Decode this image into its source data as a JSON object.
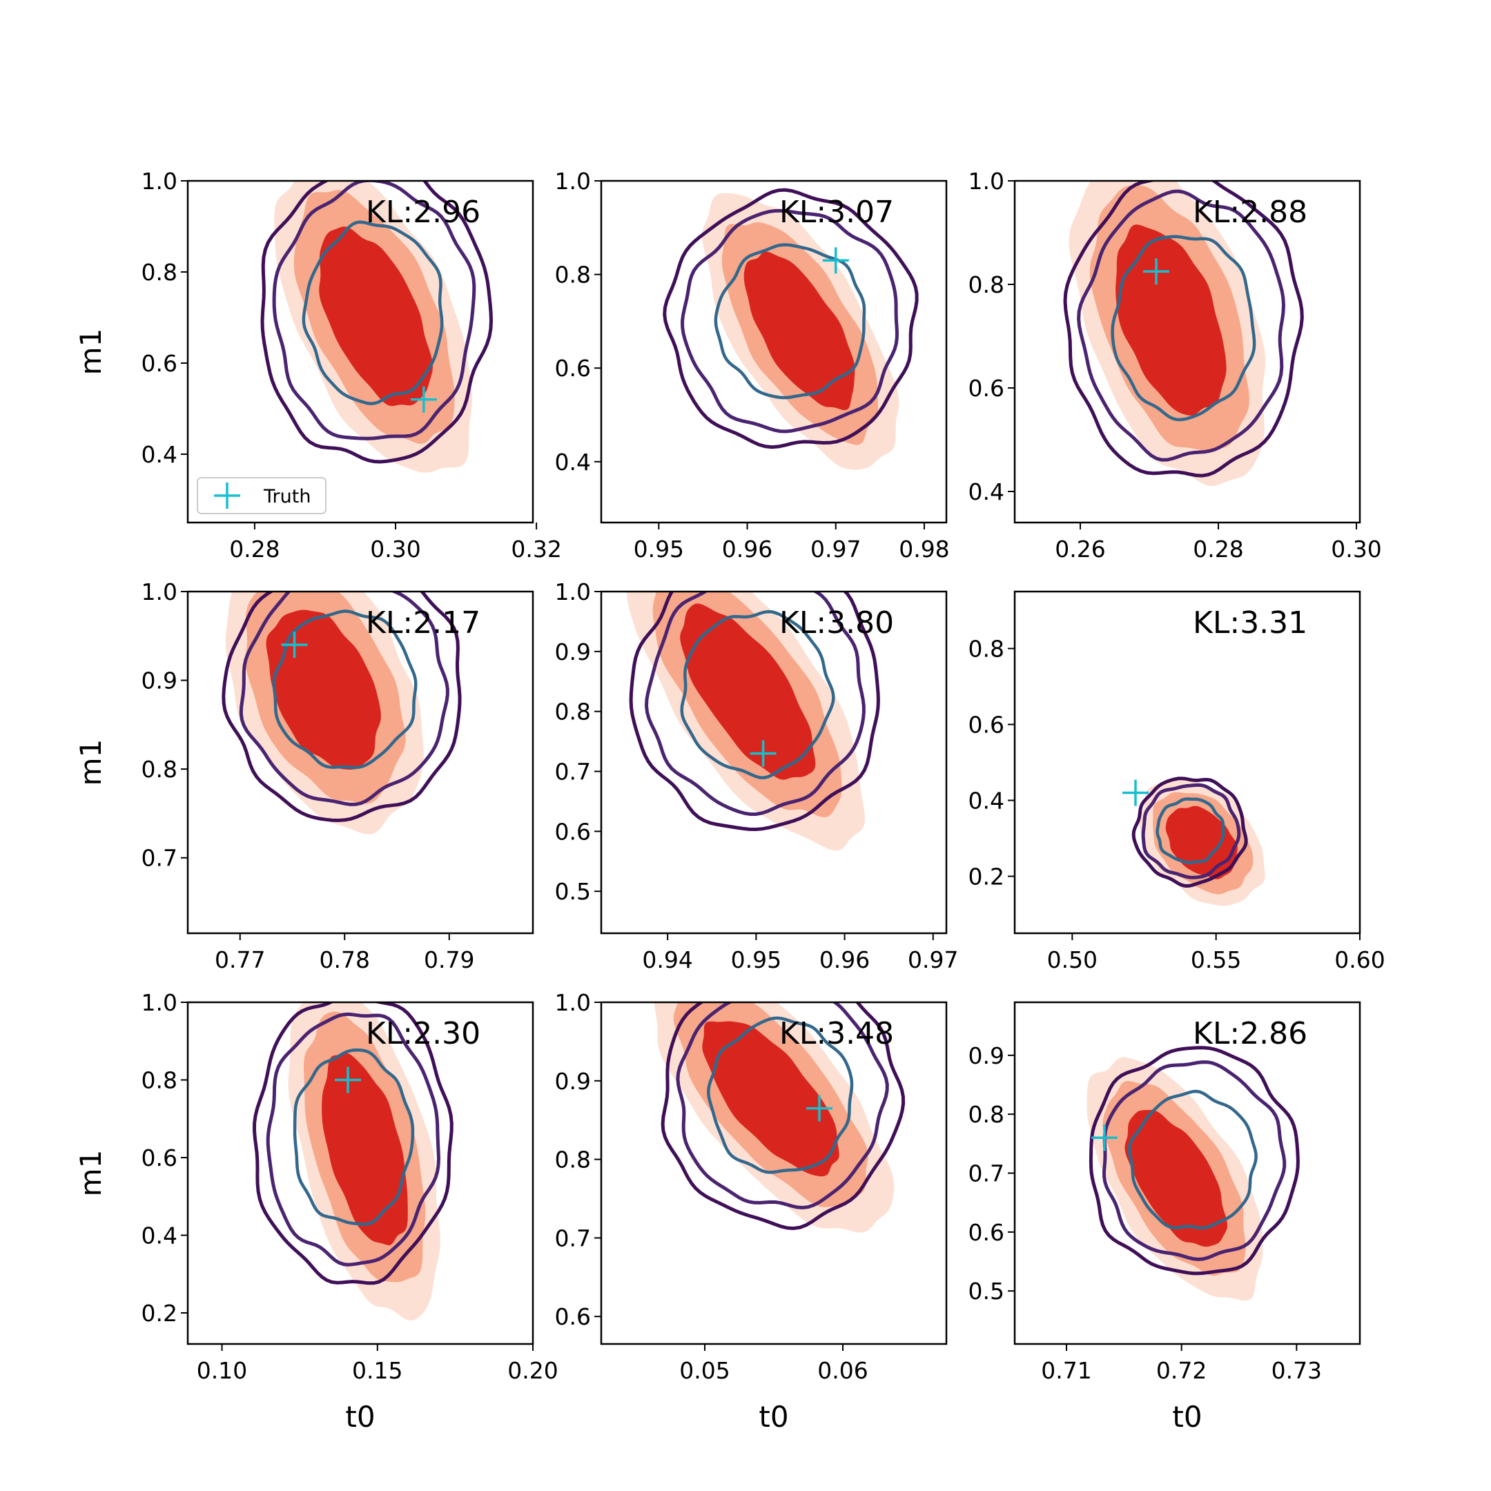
{
  "figure": {
    "xlabel": "t0",
    "ylabel": "m1",
    "legend": {
      "label": "Truth",
      "placement": "lower-left",
      "marker_color": "#17becf"
    },
    "colors": {
      "fill_outer": "#fde0d4",
      "fill_mid": "#f7a88a",
      "fill_inner": "#d8261f",
      "contour_outer": "#3f0f57",
      "contour_mid": "#4a2470",
      "contour_inner": "#33688c",
      "truth": "#17becf"
    }
  },
  "chart_data": [
    {
      "type": "contour",
      "kl": "KL:2.96",
      "xlim": [
        0.2705,
        0.3195
      ],
      "ylim": [
        0.25,
        1.0
      ],
      "xticks": [
        0.28,
        0.3,
        0.32
      ],
      "xtick_labels": [
        "0.28",
        "0.30",
        "0.32"
      ],
      "yticks": [
        0.4,
        0.6,
        0.8,
        1.0
      ],
      "ytick_labels": [
        "0.4",
        "0.6",
        "0.8",
        "1.0"
      ],
      "truth": [
        0.304,
        0.52
      ],
      "peak": [
        0.297,
        0.7
      ],
      "sx": 0.0055,
      "sy": 0.135,
      "rho": -0.55,
      "post": [
        0.297,
        0.71
      ],
      "psx": 0.0072,
      "psy": 0.145,
      "prho": 0.0,
      "show_ylabel": true,
      "show_xlabel": false,
      "legend": true
    },
    {
      "type": "contour",
      "kl": "KL:3.07",
      "xlim": [
        0.9435,
        0.9825
      ],
      "ylim": [
        0.27,
        1.0
      ],
      "xticks": [
        0.95,
        0.96,
        0.97,
        0.98
      ],
      "xtick_labels": [
        "0.95",
        "0.96",
        "0.97",
        "0.98"
      ],
      "yticks": [
        0.4,
        0.6,
        0.8,
        1.0
      ],
      "ytick_labels": [
        "0.4",
        "0.6",
        "0.8",
        "1.0"
      ],
      "truth": [
        0.97,
        0.83
      ],
      "peak": [
        0.966,
        0.68
      ],
      "sx": 0.0043,
      "sy": 0.115,
      "rho": -0.65,
      "post": [
        0.965,
        0.7
      ],
      "psx": 0.0062,
      "psy": 0.12,
      "prho": 0.0,
      "show_ylabel": false,
      "show_xlabel": false,
      "legend": false
    },
    {
      "type": "contour",
      "kl": "KL:2.88",
      "xlim": [
        0.2505,
        0.3005
      ],
      "ylim": [
        0.34,
        1.0
      ],
      "xticks": [
        0.26,
        0.28,
        0.3
      ],
      "xtick_labels": [
        "0.26",
        "0.28",
        "0.30"
      ],
      "yticks": [
        0.4,
        0.6,
        0.8,
        1.0
      ],
      "ytick_labels": [
        "0.4",
        "0.6",
        "0.8",
        "1.0"
      ],
      "truth": [
        0.271,
        0.825
      ],
      "peak": [
        0.273,
        0.73
      ],
      "sx": 0.0055,
      "sy": 0.125,
      "rho": -0.45,
      "post": [
        0.275,
        0.72
      ],
      "psx": 0.0075,
      "psy": 0.13,
      "prho": 0.0,
      "show_ylabel": false,
      "show_xlabel": false,
      "legend": false
    },
    {
      "type": "contour",
      "kl": "KL:2.17",
      "xlim": [
        0.765,
        0.798
      ],
      "ylim": [
        0.615,
        1.0
      ],
      "xticks": [
        0.77,
        0.78,
        0.79
      ],
      "xtick_labels": [
        "0.77",
        "0.78",
        "0.79"
      ],
      "yticks": [
        0.7,
        0.8,
        0.9,
        1.0
      ],
      "ytick_labels": [
        "0.7",
        "0.8",
        "0.9",
        "1.0"
      ],
      "truth": [
        0.7752,
        0.94
      ],
      "peak": [
        0.778,
        0.89
      ],
      "sx": 0.0037,
      "sy": 0.062,
      "rho": -0.4,
      "post": [
        0.78,
        0.89
      ],
      "psx": 0.005,
      "psy": 0.065,
      "prho": 0.0,
      "show_ylabel": true,
      "show_xlabel": false,
      "legend": false
    },
    {
      "type": "contour",
      "kl": "KL:3.80",
      "xlim": [
        0.9325,
        0.9715
      ],
      "ylim": [
        0.43,
        1.0
      ],
      "xticks": [
        0.94,
        0.95,
        0.96,
        0.97
      ],
      "xtick_labels": [
        "0.94",
        "0.95",
        "0.96",
        "0.97"
      ],
      "yticks": [
        0.5,
        0.6,
        0.7,
        0.8,
        0.9,
        1.0
      ],
      "ytick_labels": [
        "0.5",
        "0.6",
        "0.7",
        "0.8",
        "0.9",
        "1.0"
      ],
      "truth": [
        0.9508,
        0.73
      ],
      "peak": [
        0.949,
        0.83
      ],
      "sx": 0.0052,
      "sy": 0.1,
      "rho": -0.7,
      "post": [
        0.95,
        0.83
      ],
      "psx": 0.0062,
      "psy": 0.1,
      "prho": 0.0,
      "show_ylabel": false,
      "show_xlabel": false,
      "legend": false
    },
    {
      "type": "contour",
      "kl": "KL:3.31",
      "xlim": [
        0.48,
        0.6
      ],
      "ylim": [
        0.05,
        0.95
      ],
      "xticks": [
        0.5,
        0.55,
        0.6
      ],
      "xtick_labels": [
        "0.50",
        "0.55",
        "0.60"
      ],
      "yticks": [
        0.2,
        0.4,
        0.6,
        0.8
      ],
      "ytick_labels": [
        "0.2",
        "0.4",
        "0.6",
        "0.8"
      ],
      "truth": [
        0.522,
        0.42
      ],
      "peak": [
        0.545,
        0.29
      ],
      "sx": 0.0085,
      "sy": 0.065,
      "rho": -0.35,
      "post": [
        0.541,
        0.32
      ],
      "psx": 0.0085,
      "psy": 0.062,
      "prho": 0.0,
      "show_ylabel": false,
      "show_xlabel": false,
      "legend": false
    },
    {
      "type": "contour",
      "kl": "KL:2.30",
      "xlim": [
        0.089,
        0.2
      ],
      "ylim": [
        0.12,
        1.0
      ],
      "xticks": [
        0.1,
        0.15,
        0.2
      ],
      "xtick_labels": [
        "0.10",
        "0.15",
        "0.20"
      ],
      "yticks": [
        0.2,
        0.4,
        0.6,
        0.8,
        1.0
      ],
      "ytick_labels": [
        "0.2",
        "0.4",
        "0.6",
        "0.8",
        "1.0"
      ],
      "truth": [
        0.1405,
        0.8
      ],
      "peak": [
        0.146,
        0.62
      ],
      "sx": 0.0095,
      "sy": 0.17,
      "rho": -0.5,
      "post": [
        0.142,
        0.65
      ],
      "psx": 0.014,
      "psy": 0.165,
      "prho": 0.0,
      "show_ylabel": true,
      "show_xlabel": true,
      "legend": false
    },
    {
      "type": "contour",
      "kl": "KL:3.48",
      "xlim": [
        0.0425,
        0.0675
      ],
      "ylim": [
        0.565,
        1.0
      ],
      "xticks": [
        0.05,
        0.06
      ],
      "xtick_labels": [
        "0.05",
        "0.06"
      ],
      "yticks": [
        0.6,
        0.7,
        0.8,
        0.9,
        1.0
      ],
      "ytick_labels": [
        "0.6",
        "0.7",
        "0.8",
        "0.9",
        "1.0"
      ],
      "truth": [
        0.0583,
        0.865
      ],
      "peak": [
        0.0548,
        0.88
      ],
      "sx": 0.0034,
      "sy": 0.068,
      "rho": -0.7,
      "post": [
        0.0555,
        0.88
      ],
      "psx": 0.0038,
      "psy": 0.072,
      "prho": 0.0,
      "show_ylabel": false,
      "show_xlabel": true,
      "legend": false
    },
    {
      "type": "contour",
      "kl": "KL:2.86",
      "xlim": [
        0.7055,
        0.7355
      ],
      "ylim": [
        0.41,
        0.99
      ],
      "xticks": [
        0.71,
        0.72,
        0.73
      ],
      "xtick_labels": [
        "0.71",
        "0.72",
        "0.73"
      ],
      "yticks": [
        0.5,
        0.6,
        0.7,
        0.8,
        0.9
      ],
      "ytick_labels": [
        "0.5",
        "0.6",
        "0.7",
        "0.8",
        "0.9"
      ],
      "truth": [
        0.7133,
        0.76
      ],
      "peak": [
        0.7195,
        0.69
      ],
      "sx": 0.003,
      "sy": 0.08,
      "rho": -0.6,
      "post": [
        0.721,
        0.72
      ],
      "psx": 0.004,
      "psy": 0.085,
      "prho": 0.0,
      "show_ylabel": false,
      "show_xlabel": true,
      "legend": false
    }
  ]
}
